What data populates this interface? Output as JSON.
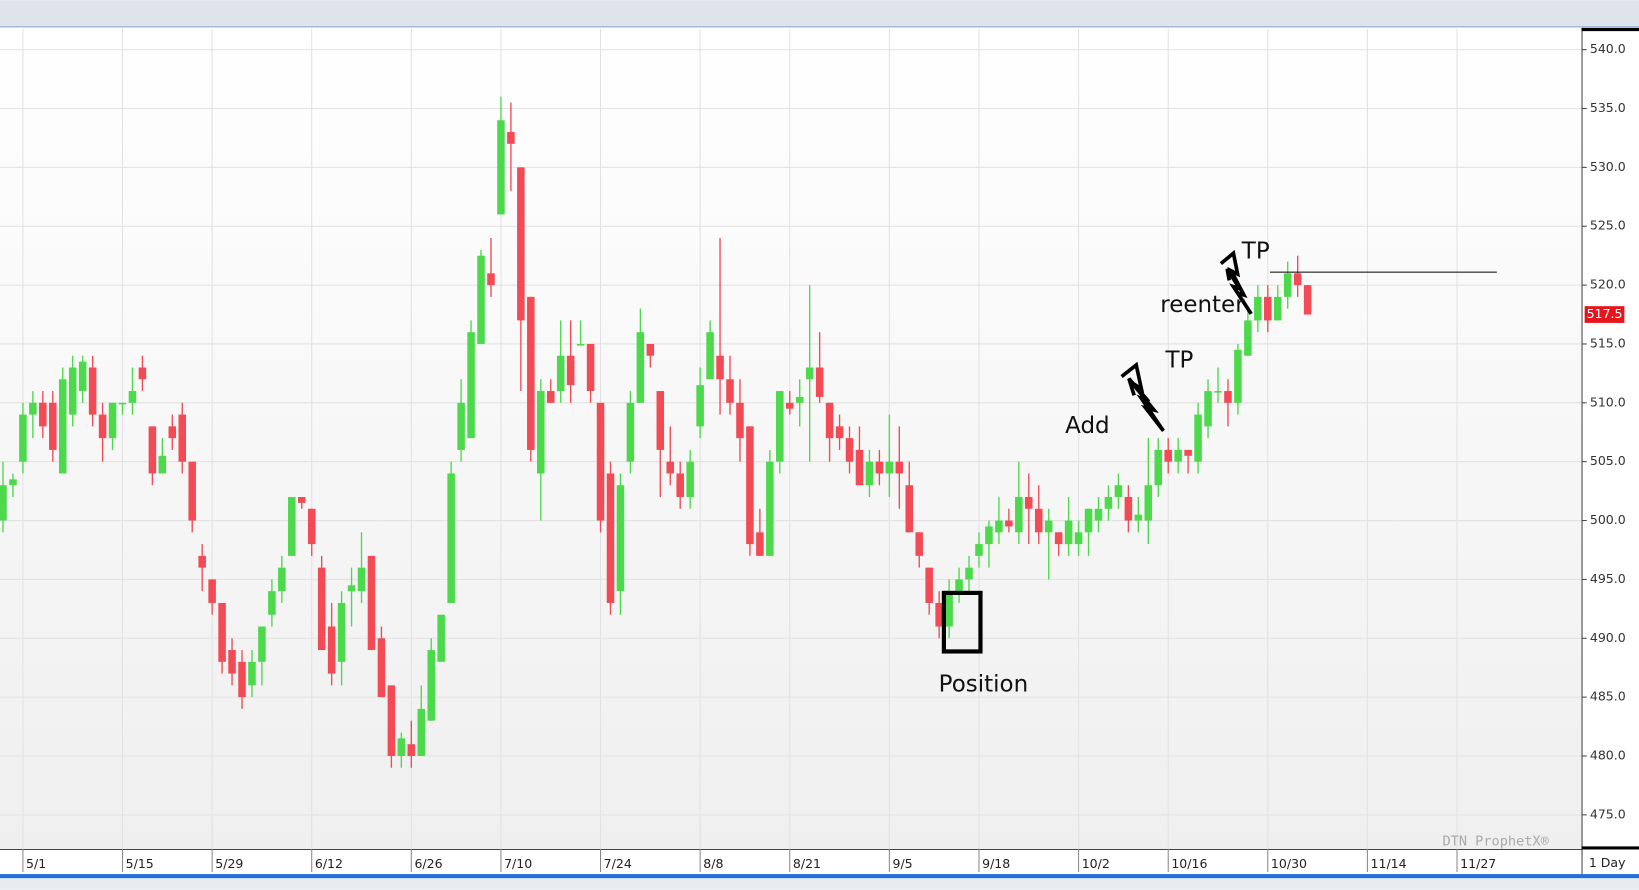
{
  "chart_data": {
    "type": "candlestick",
    "open": [
      500,
      503,
      505,
      509,
      510,
      510,
      504,
      509,
      511,
      513,
      509,
      507,
      510,
      510,
      513,
      508,
      504,
      508,
      509,
      505,
      497,
      495,
      493,
      489,
      488,
      486,
      488,
      492,
      494,
      497,
      502,
      501,
      496,
      491,
      488,
      494,
      494,
      497,
      490,
      486,
      480,
      481,
      480,
      483,
      488,
      493,
      506,
      507,
      515,
      521,
      526,
      533,
      530,
      519,
      504,
      511,
      511,
      514,
      515,
      515,
      510,
      504,
      494,
      505,
      510,
      515,
      511,
      505,
      504,
      502,
      508,
      512,
      514,
      512,
      510,
      508,
      499,
      497,
      505,
      510,
      510,
      512,
      513,
      510,
      508,
      507,
      506,
      503,
      505,
      504,
      505,
      503,
      499,
      496,
      493,
      491,
      494,
      495,
      497,
      498,
      499,
      500,
      499,
      502,
      501,
      499,
      499,
      498,
      498,
      499,
      500,
      501,
      502,
      502,
      500,
      500,
      503,
      506,
      505,
      506,
      505,
      508,
      511,
      511,
      510,
      514,
      517,
      519,
      517,
      519,
      521,
      520
    ],
    "high": [
      505,
      504,
      510,
      511,
      511,
      511,
      513,
      514,
      514,
      514,
      510,
      510,
      510,
      513,
      514,
      508,
      507,
      509,
      510,
      505,
      498,
      495,
      493,
      490,
      489,
      489,
      491,
      495,
      497,
      502,
      502,
      501,
      497,
      493,
      494,
      496,
      499,
      497,
      491,
      486,
      482,
      483,
      486,
      490,
      492,
      505,
      512,
      517,
      523,
      524,
      536,
      535.5,
      530,
      519,
      512,
      512,
      517,
      517,
      517,
      515,
      510,
      505,
      504,
      511,
      518,
      515,
      511,
      508,
      505,
      506,
      513,
      517,
      524,
      514,
      512,
      508,
      501,
      506,
      511,
      511,
      512,
      520,
      516,
      510,
      509,
      508,
      508,
      506,
      506,
      509,
      508,
      505,
      499,
      496,
      494,
      495,
      496,
      497,
      499,
      500,
      502,
      501,
      505,
      504,
      503,
      501,
      499,
      502,
      500,
      501,
      502,
      503,
      504,
      503,
      502,
      507,
      507,
      507,
      507,
      506,
      510,
      512,
      513,
      512,
      515,
      518,
      520,
      520,
      520,
      522,
      522.5,
      520
    ],
    "low": [
      499,
      502,
      504,
      507,
      507,
      505,
      504,
      508,
      510,
      508,
      505,
      506,
      509,
      509,
      511,
      503,
      504,
      506,
      504,
      499,
      494,
      492,
      487,
      486,
      484,
      485,
      486,
      491,
      493,
      497,
      501,
      497,
      489,
      486,
      486,
      491,
      493,
      489,
      485,
      479,
      479,
      479,
      480,
      483,
      488,
      493,
      505,
      507,
      515,
      519,
      526,
      528,
      511,
      505,
      500,
      510,
      510,
      510,
      515,
      510,
      499,
      492,
      492,
      504,
      510,
      513,
      502,
      503,
      501,
      501,
      507,
      512,
      509,
      509,
      505,
      497,
      497,
      497,
      504,
      509,
      508,
      505,
      510,
      505,
      506,
      504,
      503,
      502,
      503,
      502,
      501,
      499,
      496,
      492,
      490,
      490,
      493,
      494,
      496,
      496,
      498,
      499,
      498,
      498,
      498,
      495,
      497,
      497,
      497,
      497,
      499,
      500,
      501,
      499,
      499,
      498,
      502,
      504,
      504,
      504,
      504,
      507,
      510,
      508,
      509,
      514,
      516,
      516,
      517,
      518,
      519,
      517.5
    ],
    "close": [
      503,
      503.5,
      509,
      510,
      508,
      506,
      512,
      513,
      513.5,
      509,
      507,
      510,
      510,
      511,
      512,
      504,
      505.5,
      507,
      505,
      500,
      496,
      493,
      488,
      487,
      485,
      488,
      491,
      494,
      496,
      502,
      501.5,
      498,
      489,
      487,
      493,
      494.5,
      496,
      489,
      485,
      480,
      481.5,
      480,
      484,
      489,
      492,
      504,
      510,
      516,
      522.5,
      520,
      534,
      532,
      517,
      506,
      511,
      510,
      514,
      511.5,
      515,
      511,
      500,
      493,
      503,
      510,
      516,
      514,
      506,
      504,
      502,
      505,
      511.5,
      516,
      512,
      510,
      507,
      498,
      497,
      505,
      511,
      509.5,
      510.5,
      513,
      510.5,
      507,
      507,
      505,
      503,
      505,
      504,
      505,
      504,
      499,
      497,
      493,
      491,
      494,
      495,
      496,
      498,
      499.5,
      500,
      499.5,
      502,
      501,
      499,
      500,
      498,
      500,
      499,
      501,
      501,
      502,
      503,
      500,
      500.5,
      503,
      506,
      505,
      506,
      505.5,
      509,
      511,
      511,
      510,
      514.5,
      517,
      519,
      517,
      519,
      521,
      520,
      517.5
    ],
    "up_color": "#4cd94c",
    "down_color": "#f24b55",
    "xlim": [
      -0.3,
      158.5
    ],
    "xticks": [
      {
        "value": 2,
        "label": "5/1"
      },
      {
        "value": 12,
        "label": "5/15"
      },
      {
        "value": 21,
        "label": "5/29"
      },
      {
        "value": 31,
        "label": "6/12"
      },
      {
        "value": 41,
        "label": "6/26"
      },
      {
        "value": 50,
        "label": "7/10"
      },
      {
        "value": 60,
        "label": "7/24"
      },
      {
        "value": 70,
        "label": "8/8"
      },
      {
        "value": 79,
        "label": "8/21"
      },
      {
        "value": 89,
        "label": "9/5"
      },
      {
        "value": 98,
        "label": "9/18"
      },
      {
        "value": 108,
        "label": "10/2"
      },
      {
        "value": 117,
        "label": "10/16"
      },
      {
        "value": 127,
        "label": "10/30"
      },
      {
        "value": 137,
        "label": "11/14"
      },
      {
        "value": 146,
        "label": "11/27"
      }
    ],
    "ylim": [
      472.1,
      541.8
    ],
    "yticks": [
      {
        "value": 475,
        "label": "475.0"
      },
      {
        "value": 480,
        "label": "480.0"
      },
      {
        "value": 485,
        "label": "485.0"
      },
      {
        "value": 490,
        "label": "490.0"
      },
      {
        "value": 495,
        "label": "495.0"
      },
      {
        "value": 500,
        "label": "500.0"
      },
      {
        "value": 505,
        "label": "505.0"
      },
      {
        "value": 510,
        "label": "510.0"
      },
      {
        "value": 515,
        "label": "515.0"
      },
      {
        "value": 520,
        "label": "520.0"
      },
      {
        "value": 525,
        "label": "525.0"
      },
      {
        "value": 530,
        "label": "530.0"
      },
      {
        "value": 535,
        "label": "535.0"
      },
      {
        "value": 540,
        "label": "540.0"
      }
    ],
    "grid": true,
    "reference_line": 521.1,
    "annotations": [
      "Position",
      "Add",
      "TP",
      "reenter",
      "TP"
    ],
    "watermark": "DTN ProphetX®",
    "interval": "1 Day"
  }
}
